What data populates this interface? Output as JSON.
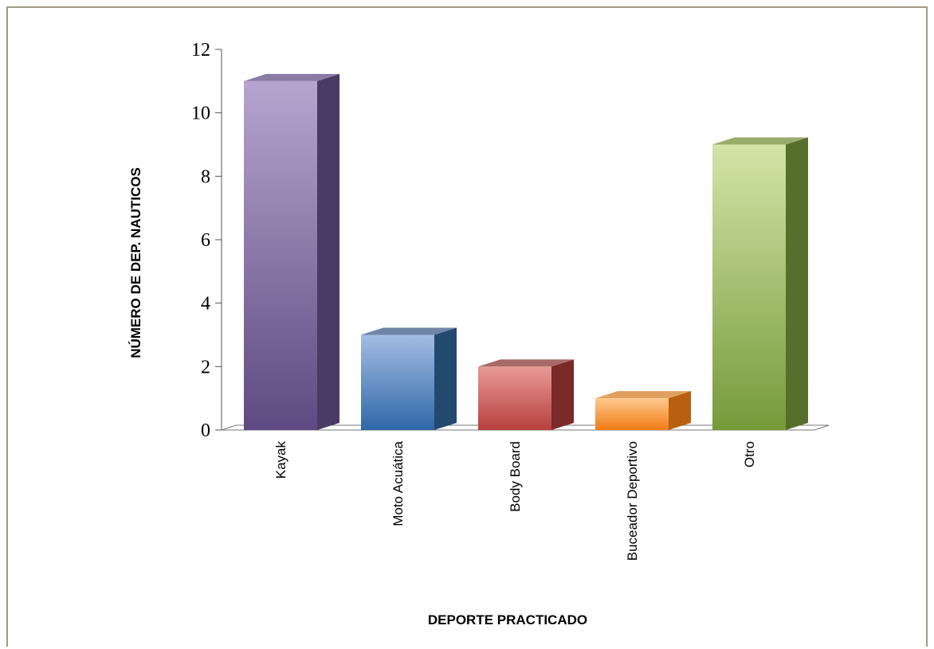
{
  "chart_data": {
    "type": "bar",
    "three_d": true,
    "categories": [
      "Kayak",
      "Moto Acuática",
      "Body Board",
      "Buceador Deportivo",
      "Otro"
    ],
    "values": [
      11,
      3,
      2,
      1,
      9
    ],
    "xlabel": "DEPORTE PRACTICADO",
    "ylabel": "NÚMERO DE DEP. NAUTICOS",
    "ylim": [
      0,
      12
    ],
    "yticks": [
      "0",
      "2",
      "4",
      "6",
      "8",
      "10",
      "12"
    ],
    "grid": false,
    "legend": "none",
    "colors": [
      {
        "front_top": "#b6a5cf",
        "front_bottom": "#5d4a80",
        "side": "#4a3a66",
        "top": "#8a7aa6"
      },
      {
        "front_top": "#a3bde3",
        "front_bottom": "#2f67a8",
        "side": "#23496f",
        "top": "#6f86a6"
      },
      {
        "front_top": "#e89a98",
        "front_bottom": "#b6403c",
        "side": "#7a2a28",
        "top": "#a86a68"
      },
      {
        "front_top": "#ffc98d",
        "front_bottom": "#f07b14",
        "side": "#b8600f",
        "top": "#e0a060"
      },
      {
        "front_top": "#d3e4a8",
        "front_bottom": "#769a3a",
        "side": "#566f2c",
        "top": "#98ad6a"
      }
    ]
  }
}
